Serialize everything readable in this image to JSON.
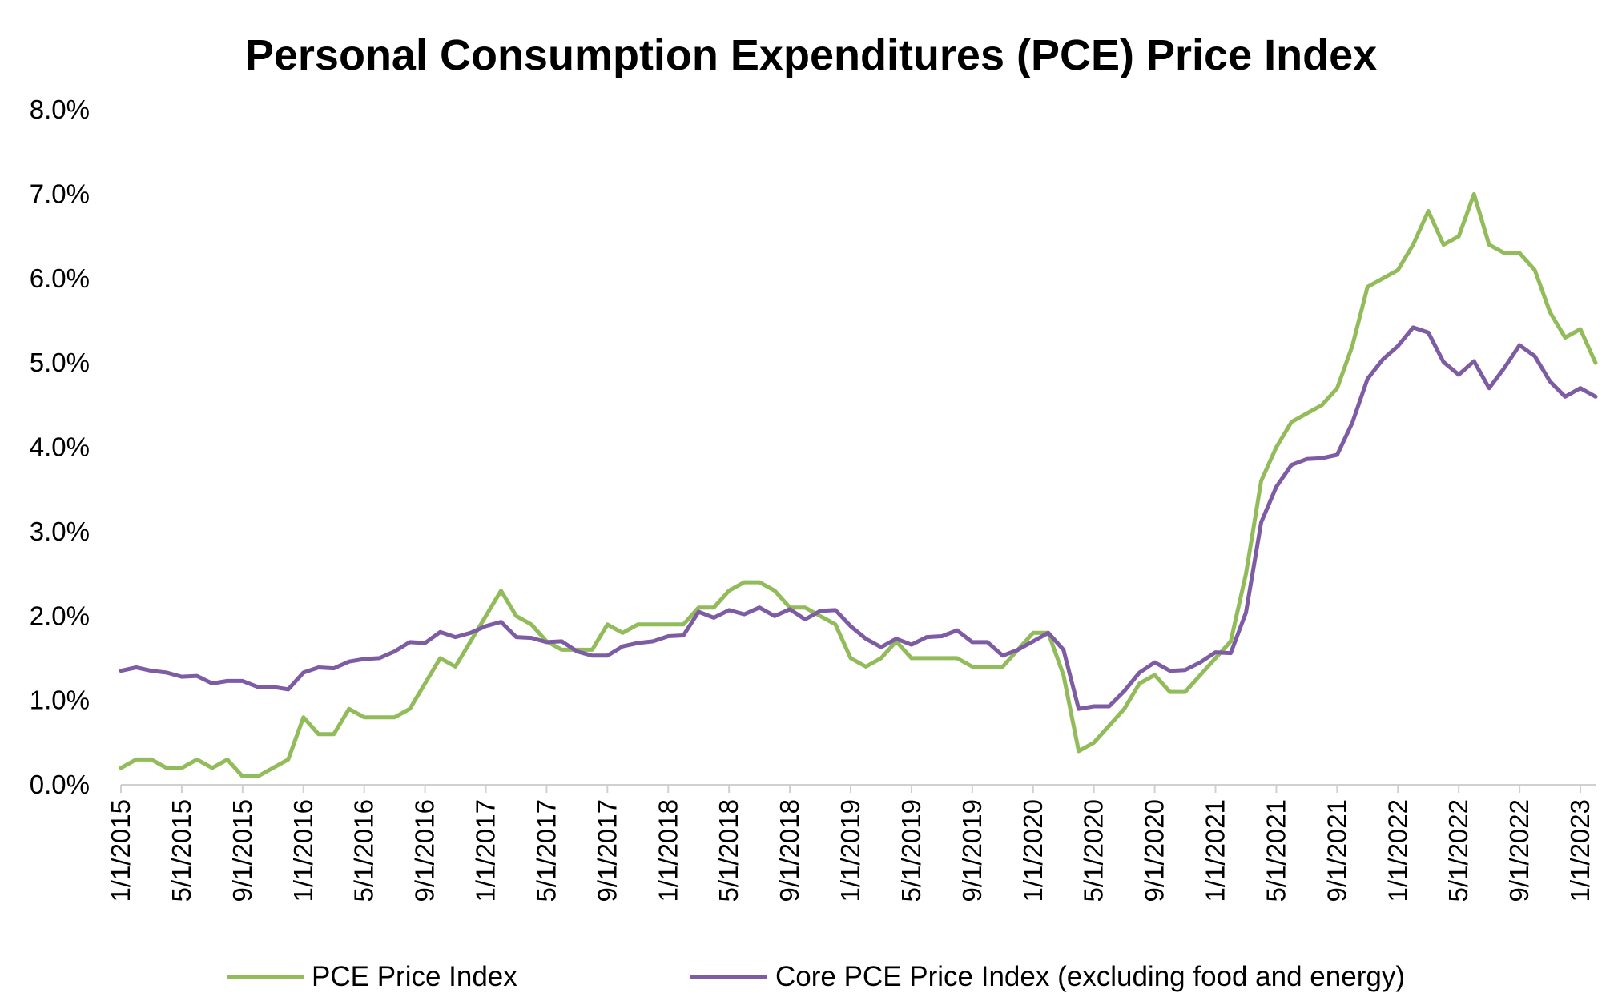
{
  "chart_data": {
    "type": "line",
    "title": "Personal Consumption Expenditures (PCE) Price Index",
    "xlabel": "",
    "ylabel": "",
    "ylim": [
      0,
      8
    ],
    "y_ticks": [
      "0.0%",
      "1.0%",
      "2.0%",
      "3.0%",
      "4.0%",
      "5.0%",
      "6.0%",
      "7.0%",
      "8.0%"
    ],
    "x_tick_labels": [
      "1/1/2015",
      "5/1/2015",
      "9/1/2015",
      "1/1/2016",
      "5/1/2016",
      "9/1/2016",
      "1/1/2017",
      "5/1/2017",
      "9/1/2017",
      "1/1/2018",
      "5/1/2018",
      "9/1/2018",
      "1/1/2019",
      "5/1/2019",
      "9/1/2019",
      "1/1/2020",
      "5/1/2020",
      "9/1/2020",
      "1/1/2021",
      "5/1/2021",
      "9/1/2021",
      "1/1/2022",
      "5/1/2022",
      "9/1/2022",
      "1/1/2023"
    ],
    "x_start": "1/1/2015",
    "x_end": "3/1/2023",
    "legend_position": "bottom",
    "series": [
      {
        "name": "PCE Price Index",
        "color": "#92bb5a",
        "values": [
          0.2,
          0.3,
          0.3,
          0.2,
          0.2,
          0.3,
          0.2,
          0.3,
          0.1,
          0.1,
          0.2,
          0.3,
          0.8,
          0.6,
          0.6,
          0.9,
          0.8,
          0.8,
          0.8,
          0.9,
          1.2,
          1.5,
          1.4,
          1.7,
          2.0,
          2.3,
          2.0,
          1.9,
          1.7,
          1.6,
          1.6,
          1.6,
          1.9,
          1.8,
          1.9,
          1.9,
          1.9,
          1.9,
          2.1,
          2.1,
          2.3,
          2.4,
          2.4,
          2.3,
          2.1,
          2.1,
          2.0,
          1.9,
          1.5,
          1.4,
          1.5,
          1.7,
          1.5,
          1.5,
          1.5,
          1.5,
          1.4,
          1.4,
          1.4,
          1.6,
          1.8,
          1.8,
          1.3,
          0.4,
          0.5,
          0.7,
          0.9,
          1.2,
          1.3,
          1.1,
          1.1,
          1.3,
          1.5,
          1.7,
          2.5,
          3.6,
          4.0,
          4.3,
          4.4,
          4.5,
          4.7,
          5.2,
          5.9,
          6.0,
          6.1,
          6.4,
          6.8,
          6.4,
          6.5,
          7.0,
          6.4,
          6.3,
          6.3,
          6.1,
          5.6,
          5.3,
          5.4,
          5.0
        ]
      },
      {
        "name": "Core PCE Price Index (excluding food and energy)",
        "color": "#7d5ca4",
        "values": [
          1.35,
          1.39,
          1.35,
          1.33,
          1.28,
          1.29,
          1.2,
          1.23,
          1.23,
          1.16,
          1.16,
          1.13,
          1.33,
          1.39,
          1.38,
          1.46,
          1.49,
          1.5,
          1.58,
          1.69,
          1.68,
          1.81,
          1.75,
          1.8,
          1.88,
          1.93,
          1.75,
          1.74,
          1.69,
          1.7,
          1.58,
          1.53,
          1.53,
          1.64,
          1.68,
          1.7,
          1.76,
          1.77,
          2.05,
          1.98,
          2.07,
          2.02,
          2.1,
          2.0,
          2.08,
          1.96,
          2.06,
          2.07,
          1.88,
          1.73,
          1.63,
          1.73,
          1.66,
          1.75,
          1.76,
          1.83,
          1.69,
          1.69,
          1.53,
          1.6,
          1.7,
          1.8,
          1.6,
          0.9,
          0.93,
          0.93,
          1.11,
          1.33,
          1.45,
          1.35,
          1.36,
          1.45,
          1.57,
          1.56,
          2.04,
          3.11,
          3.53,
          3.79,
          3.86,
          3.87,
          3.91,
          4.29,
          4.81,
          5.04,
          5.2,
          5.42,
          5.36,
          5.01,
          4.86,
          5.02,
          4.7,
          4.94,
          5.21,
          5.08,
          4.78,
          4.6,
          4.7,
          4.6
        ]
      }
    ]
  }
}
